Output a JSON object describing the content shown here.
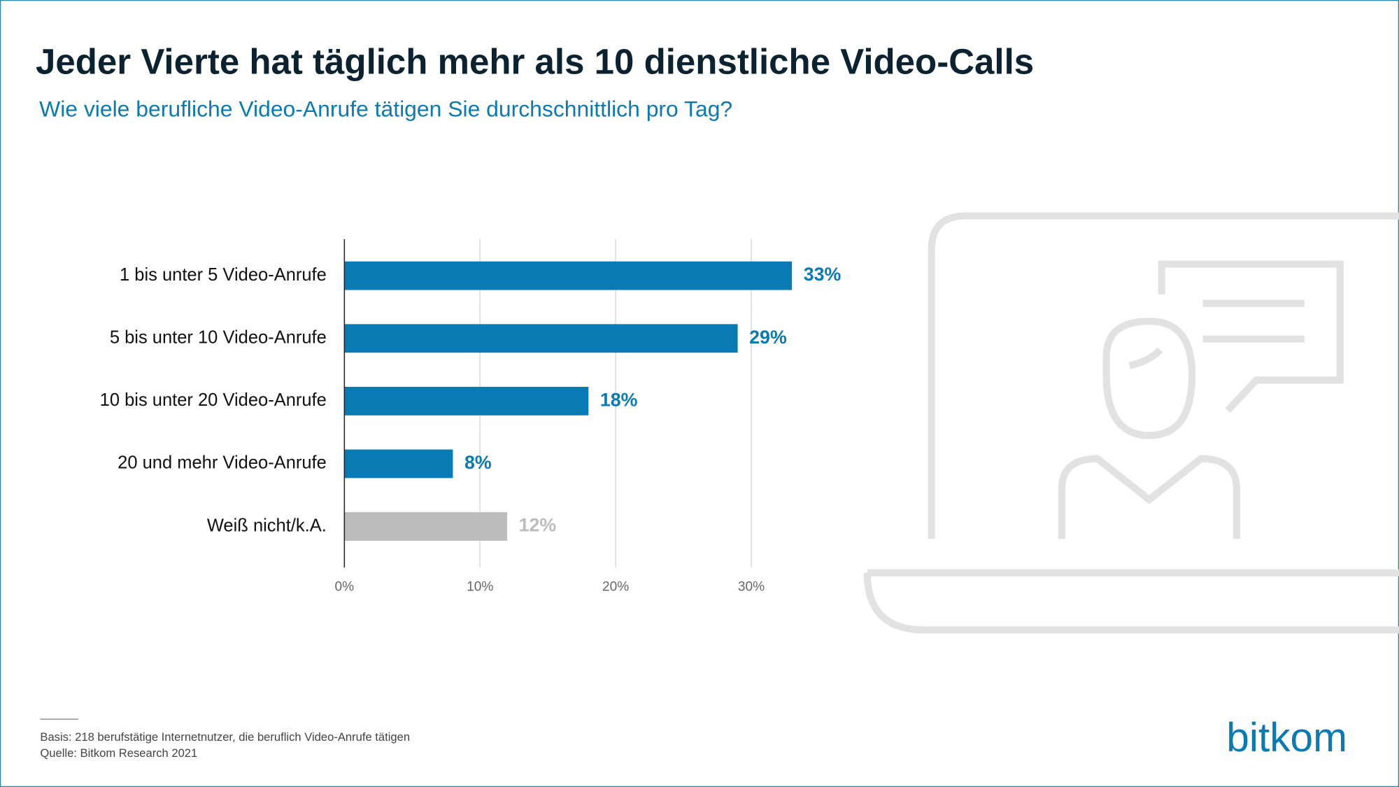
{
  "chart_data": {
    "type": "bar",
    "orientation": "horizontal",
    "title": "Jeder Vierte hat täglich mehr als 10 dienstliche Video-Calls",
    "subtitle": "Wie viele berufliche Video-Anrufe tätigen Sie durchschnittlich pro Tag?",
    "categories": [
      "1 bis unter 5 Video-Anrufe",
      "5 bis unter 10 Video-Anrufe",
      "10 bis unter 20 Video-Anrufe",
      "20 und mehr Video-Anrufe",
      "Weiß nicht/k.A."
    ],
    "values": [
      33,
      29,
      18,
      8,
      12
    ],
    "value_labels": [
      "33%",
      "29%",
      "18%",
      "8%",
      "12%"
    ],
    "colors": [
      "#0a7ab5",
      "#0a7ab5",
      "#0a7ab5",
      "#0a7ab5",
      "#bcbcbc"
    ],
    "xlim": [
      0,
      30
    ],
    "xticks": [
      {
        "value": 0,
        "label": "0%"
      },
      {
        "value": 10,
        "label": "10%"
      },
      {
        "value": 20,
        "label": "20%"
      },
      {
        "value": 30,
        "label": "30%"
      }
    ],
    "grid": true
  },
  "footer": {
    "basis": "Basis: 218 berufstätige Internetnutzer, die beruflich Video-Anrufe tätigen",
    "source": "Quelle: Bitkom Research 2021",
    "logo": "bitkom"
  }
}
